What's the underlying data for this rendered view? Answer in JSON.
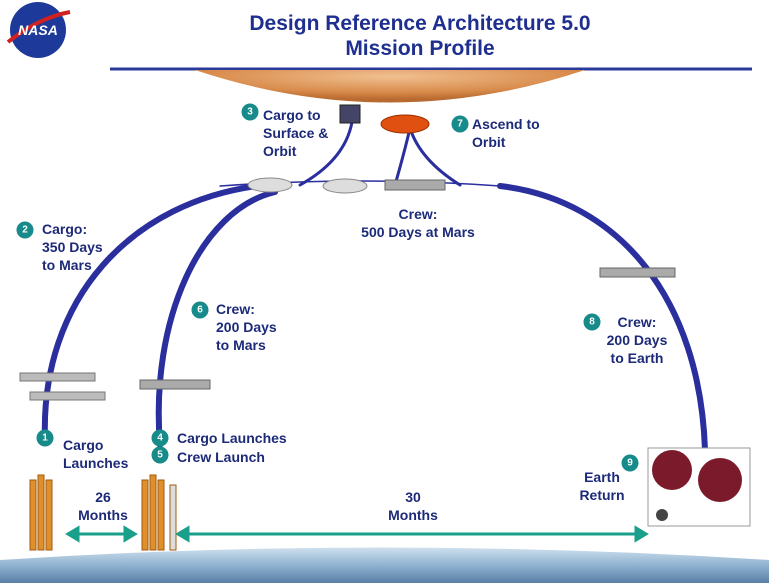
{
  "header": {
    "logo": "NASA",
    "title": [
      "Design Reference Architecture 5.0",
      "Mission Profile"
    ]
  },
  "steps": [
    {
      "number": "1",
      "label": [
        "Cargo",
        "Launches"
      ]
    },
    {
      "number": "2",
      "label": [
        "Cargo:",
        "350 Days",
        "to Mars"
      ]
    },
    {
      "number": "3",
      "label": [
        "Cargo to",
        "Surface &",
        "Orbit"
      ]
    },
    {
      "number": "4",
      "label": [
        "Cargo Launches"
      ]
    },
    {
      "number": "5",
      "label": [
        "Crew Launch"
      ]
    },
    {
      "number": "6",
      "label": [
        "Crew:",
        "200 Days",
        "to Mars"
      ]
    },
    {
      "number": "7",
      "label": [
        "Ascend to",
        "Orbit"
      ]
    },
    {
      "number": "8",
      "label": [
        "Crew:",
        "200 Days",
        "to Earth"
      ]
    },
    {
      "number": "9",
      "label": [
        "Earth",
        "Return"
      ]
    }
  ],
  "stay": {
    "label": [
      "Crew:",
      "500 Days at Mars"
    ]
  },
  "durations": [
    {
      "label": [
        "26",
        "Months"
      ]
    },
    {
      "label": [
        "30",
        "Months"
      ]
    }
  ]
}
